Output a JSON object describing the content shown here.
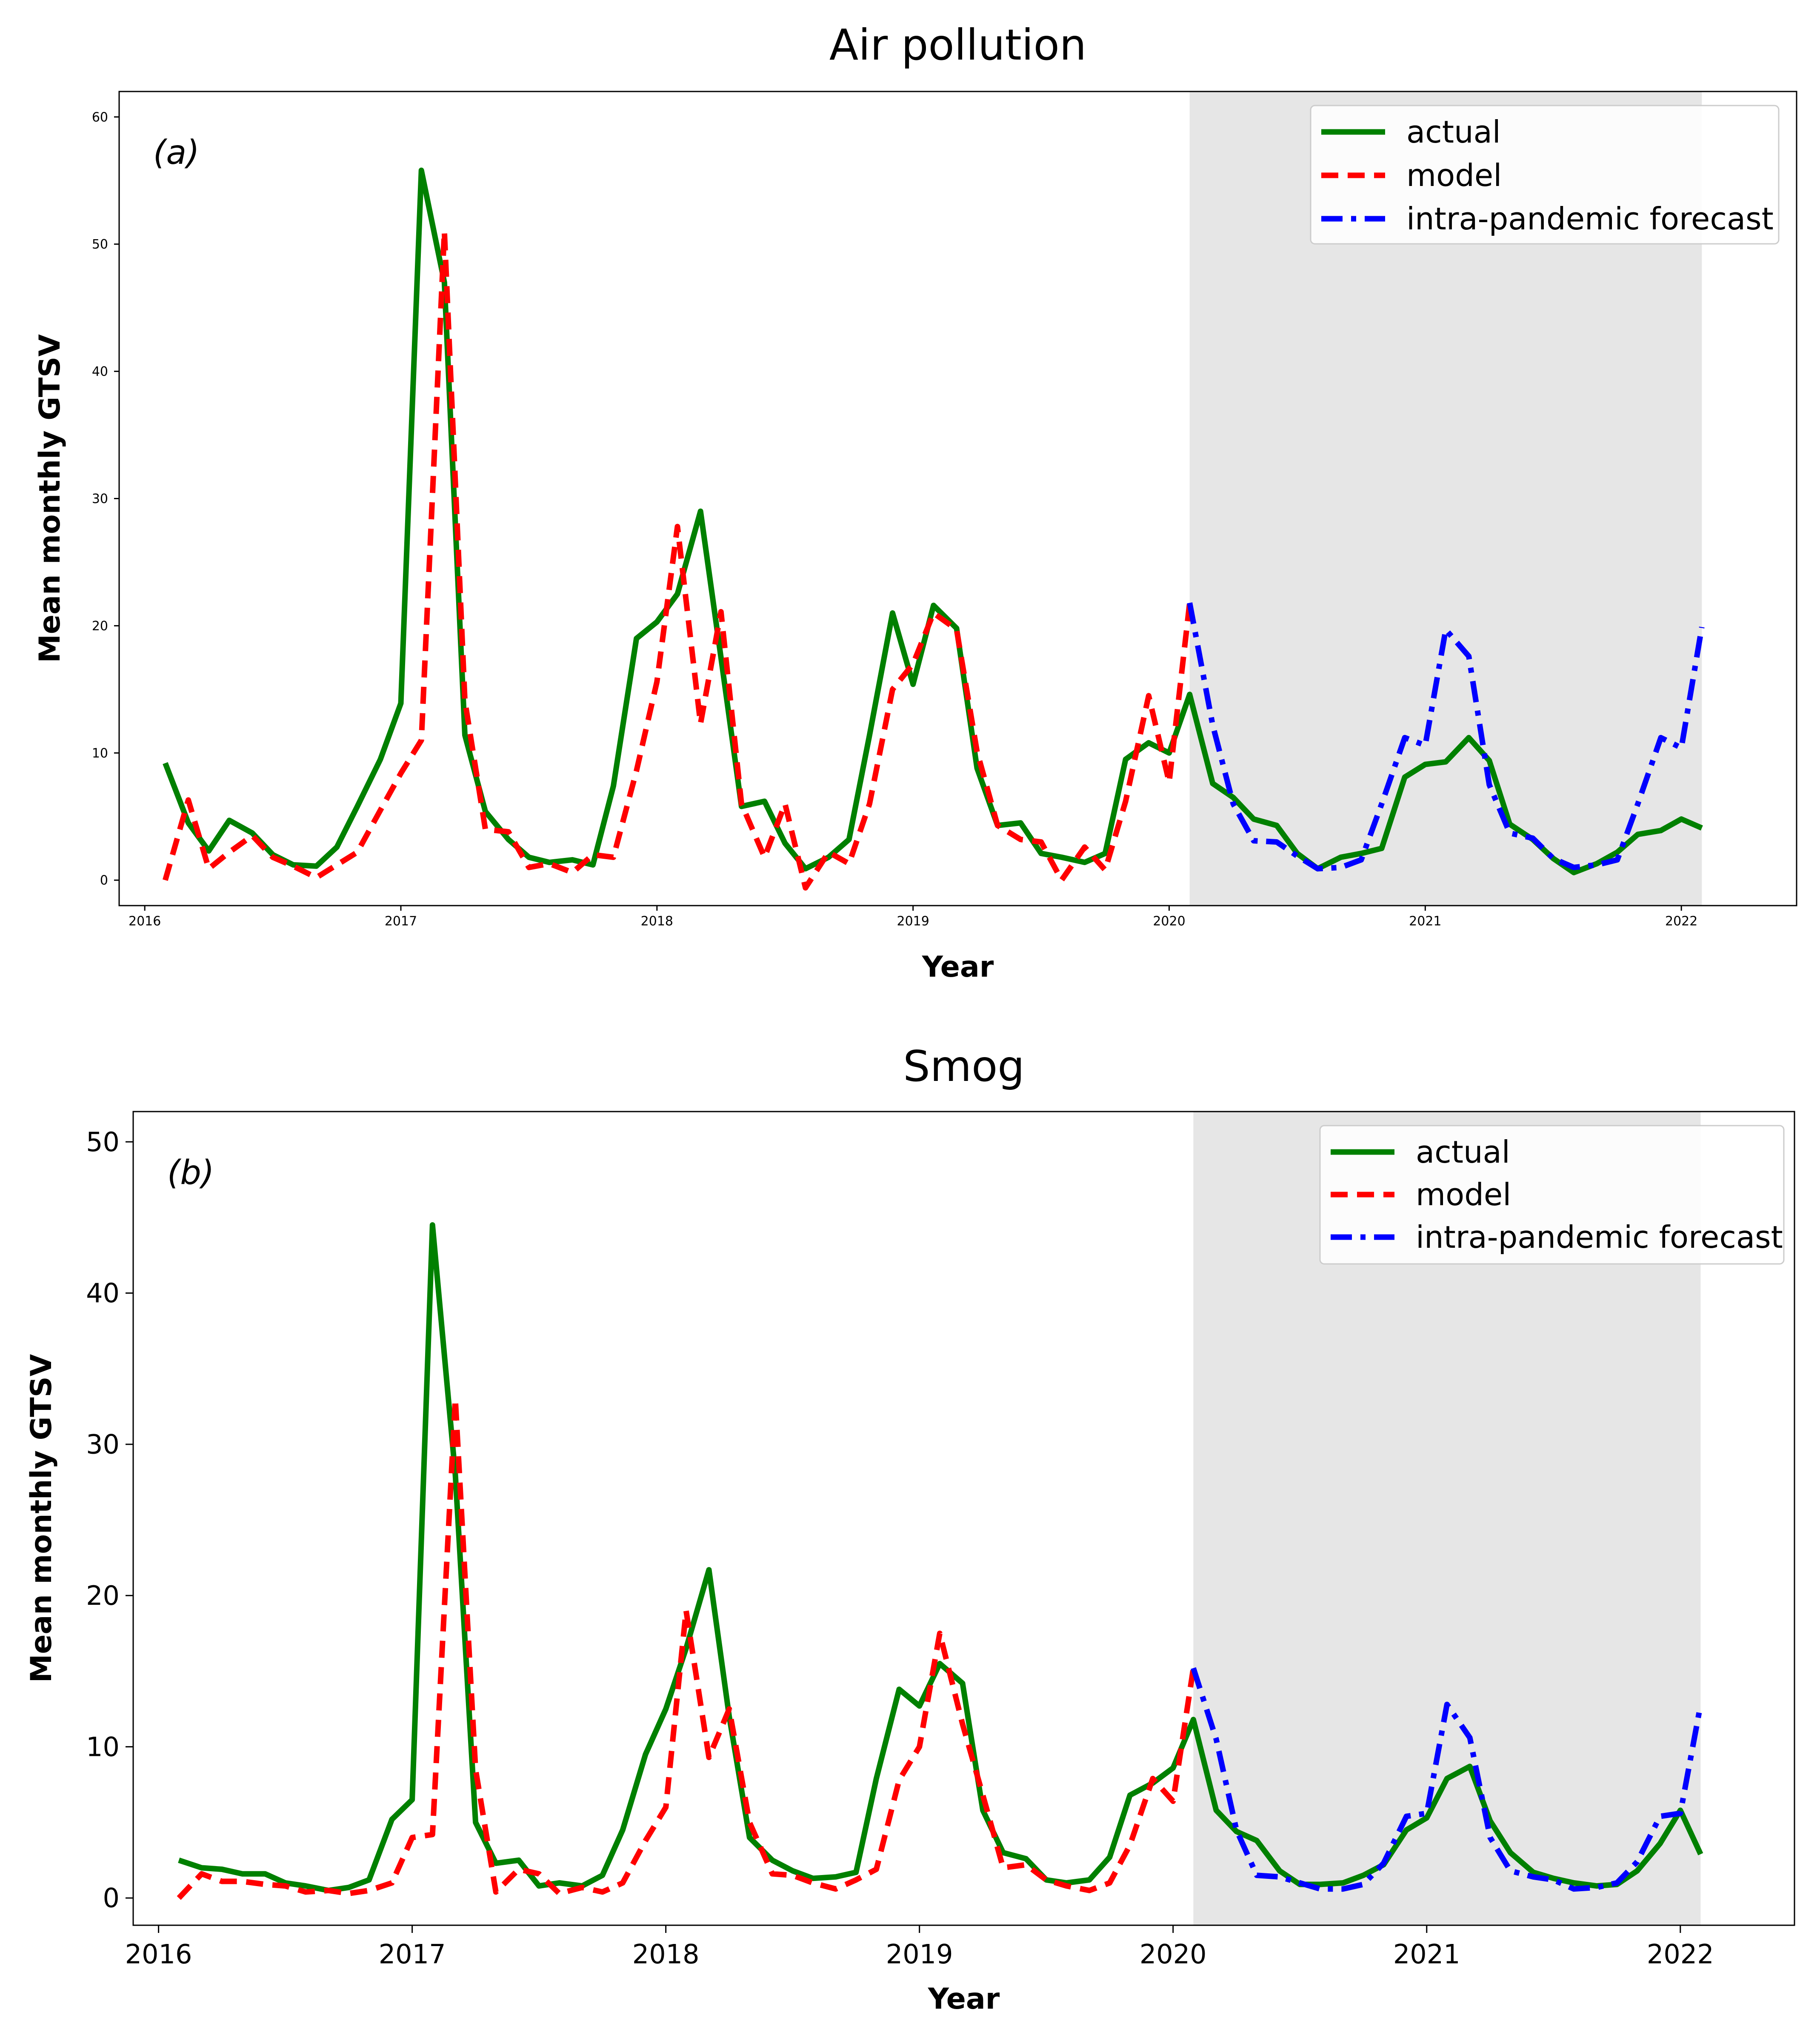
{
  "chart_data": [
    {
      "type": "line",
      "title": "Air pollution",
      "panel_label": "(a)",
      "xlabel": "Year",
      "ylabel": "Mean monthly GTSV",
      "xlim": [
        2015.9,
        2022.45
      ],
      "ylim": [
        -2,
        62
      ],
      "xticks": [
        2016,
        2017,
        2018,
        2019,
        2020,
        2021,
        2022
      ],
      "xtick_labels": [
        "2016",
        "2017",
        "2018",
        "2019",
        "2020",
        "2021",
        "2022"
      ],
      "yticks": [
        0,
        10,
        20,
        30,
        40,
        50,
        60
      ],
      "ytick_labels": [
        "0",
        "10",
        "20",
        "30",
        "40",
        "50",
        "60"
      ],
      "shaded_region": [
        2020.08,
        2022.08
      ],
      "legend_position": "top-right",
      "series": [
        {
          "name": "actual",
          "color": "#008000",
          "style": "solid",
          "x": [
            2016.08,
            2016.17,
            2016.25,
            2016.33,
            2016.42,
            2016.5,
            2016.58,
            2016.67,
            2016.75,
            2016.83,
            2016.92,
            2017.0,
            2017.08,
            2017.17,
            2017.25,
            2017.33,
            2017.42,
            2017.5,
            2017.58,
            2017.67,
            2017.75,
            2017.83,
            2017.92,
            2018.0,
            2018.08,
            2018.17,
            2018.25,
            2018.33,
            2018.42,
            2018.5,
            2018.58,
            2018.67,
            2018.75,
            2018.83,
            2018.92,
            2019.0,
            2019.08,
            2019.17,
            2019.25,
            2019.33,
            2019.42,
            2019.5,
            2019.58,
            2019.67,
            2019.75,
            2019.83,
            2019.92,
            2020.0,
            2020.08,
            2020.17,
            2020.25,
            2020.33,
            2020.42,
            2020.5,
            2020.58,
            2020.67,
            2020.75,
            2020.83,
            2020.92,
            2021.0,
            2021.08,
            2021.17,
            2021.25,
            2021.33,
            2021.42,
            2021.5,
            2021.58,
            2021.67,
            2021.75,
            2021.83,
            2021.92,
            2022.0,
            2022.08
          ],
          "values": [
            9.2,
            4.5,
            2.3,
            4.7,
            3.7,
            2.0,
            1.2,
            1.1,
            2.6,
            5.8,
            9.5,
            13.9,
            55.8,
            47.0,
            11.4,
            5.4,
            3.2,
            1.8,
            1.4,
            1.6,
            1.2,
            7.4,
            19.0,
            20.3,
            22.5,
            29.0,
            17.5,
            5.8,
            6.2,
            2.9,
            0.9,
            1.8,
            3.2,
            11.4,
            21.0,
            15.4,
            21.6,
            19.8,
            8.8,
            4.3,
            4.5,
            2.1,
            1.8,
            1.4,
            2.1,
            9.5,
            10.8,
            10.0,
            14.6,
            7.6,
            6.5,
            4.8,
            4.3,
            2.1,
            0.9,
            1.8,
            2.1,
            2.5,
            8.1,
            9.1,
            9.3,
            11.2,
            9.4,
            4.4,
            3.2,
            1.7,
            0.6,
            1.3,
            2.2,
            3.6,
            3.9,
            4.8,
            4.1
          ]
        },
        {
          "name": "model",
          "color": "#ff0000",
          "style": "dashed",
          "x": [
            2016.08,
            2016.17,
            2016.25,
            2016.33,
            2016.42,
            2016.5,
            2016.58,
            2016.67,
            2016.75,
            2016.83,
            2016.92,
            2017.0,
            2017.08,
            2017.17,
            2017.25,
            2017.33,
            2017.42,
            2017.5,
            2017.58,
            2017.67,
            2017.75,
            2017.83,
            2017.92,
            2018.0,
            2018.08,
            2018.17,
            2018.25,
            2018.33,
            2018.42,
            2018.5,
            2018.58,
            2018.67,
            2018.75,
            2018.83,
            2018.92,
            2019.0,
            2019.08,
            2019.17,
            2019.25,
            2019.33,
            2019.42,
            2019.5,
            2019.58,
            2019.67,
            2019.75,
            2019.83,
            2019.92,
            2020.0,
            2020.08
          ],
          "values": [
            0.0,
            6.3,
            0.9,
            2.2,
            3.5,
            1.8,
            1.1,
            0.2,
            1.2,
            2.2,
            5.5,
            8.4,
            11.0,
            51.0,
            14.1,
            4.0,
            3.8,
            1.0,
            1.3,
            0.6,
            2.0,
            1.8,
            8.6,
            15.6,
            27.8,
            12.3,
            21.1,
            6.0,
            1.8,
            6.0,
            -0.6,
            2.2,
            1.3,
            6.0,
            15.0,
            17.0,
            21.0,
            19.7,
            10.1,
            4.3,
            3.2,
            3.0,
            0.0,
            2.6,
            0.8,
            6.2,
            14.5,
            7.7,
            21.8
          ]
        },
        {
          "name": "intra-pandemic forecast",
          "color": "#0000ff",
          "style": "dashdot",
          "x": [
            2020.08,
            2020.17,
            2020.25,
            2020.33,
            2020.42,
            2020.5,
            2020.58,
            2020.67,
            2020.75,
            2020.83,
            2020.92,
            2021.0,
            2021.08,
            2021.17,
            2021.25,
            2021.33,
            2021.42,
            2021.5,
            2021.58,
            2021.67,
            2021.75,
            2021.83,
            2021.92,
            2022.0,
            2022.08
          ],
          "values": [
            21.8,
            12.2,
            6.0,
            3.1,
            3.0,
            1.9,
            0.9,
            1.0,
            1.6,
            6.0,
            11.2,
            10.6,
            19.7,
            17.6,
            7.5,
            3.7,
            3.3,
            1.7,
            1.0,
            1.2,
            1.6,
            6.0,
            11.2,
            10.4,
            19.9
          ]
        }
      ]
    },
    {
      "type": "line",
      "title": "Smog",
      "panel_label": "(b)",
      "xlabel": "Year",
      "ylabel": "Mean monthly GTSV",
      "xlim": [
        2015.9,
        2022.45
      ],
      "ylim": [
        -1.8,
        52
      ],
      "xticks": [
        2016,
        2017,
        2018,
        2019,
        2020,
        2021,
        2022
      ],
      "xtick_labels": [
        "2016",
        "2017",
        "2018",
        "2019",
        "2020",
        "2021",
        "2022"
      ],
      "yticks": [
        0,
        10,
        20,
        30,
        40,
        50
      ],
      "ytick_labels": [
        "0",
        "10",
        "20",
        "30",
        "40",
        "50"
      ],
      "shaded_region": [
        2020.08,
        2022.08
      ],
      "legend_position": "top-right",
      "series": [
        {
          "name": "actual",
          "color": "#008000",
          "style": "solid",
          "x": [
            2016.08,
            2016.17,
            2016.25,
            2016.33,
            2016.42,
            2016.5,
            2016.58,
            2016.67,
            2016.75,
            2016.83,
            2016.92,
            2017.0,
            2017.08,
            2017.17,
            2017.25,
            2017.33,
            2017.42,
            2017.5,
            2017.58,
            2017.67,
            2017.75,
            2017.83,
            2017.92,
            2018.0,
            2018.08,
            2018.17,
            2018.25,
            2018.33,
            2018.42,
            2018.5,
            2018.58,
            2018.67,
            2018.75,
            2018.83,
            2018.92,
            2019.0,
            2019.08,
            2019.17,
            2019.25,
            2019.33,
            2019.42,
            2019.5,
            2019.58,
            2019.67,
            2019.75,
            2019.83,
            2019.92,
            2020.0,
            2020.08,
            2020.17,
            2020.25,
            2020.33,
            2020.42,
            2020.5,
            2020.58,
            2020.67,
            2020.75,
            2020.83,
            2020.92,
            2021.0,
            2021.08,
            2021.17,
            2021.25,
            2021.33,
            2021.42,
            2021.5,
            2021.58,
            2021.67,
            2021.75,
            2021.83,
            2021.92,
            2022.0,
            2022.08
          ],
          "values": [
            2.5,
            2.0,
            1.9,
            1.6,
            1.6,
            1.0,
            0.8,
            0.5,
            0.7,
            1.2,
            5.2,
            6.5,
            44.5,
            28.0,
            5.0,
            2.3,
            2.5,
            0.8,
            1.0,
            0.8,
            1.5,
            4.5,
            9.5,
            12.5,
            16.5,
            21.7,
            12.0,
            4.0,
            2.5,
            1.8,
            1.3,
            1.4,
            1.7,
            7.9,
            13.8,
            12.7,
            15.5,
            14.2,
            5.8,
            3.0,
            2.6,
            1.2,
            1.0,
            1.2,
            2.7,
            6.8,
            7.6,
            8.6,
            11.8,
            5.8,
            4.4,
            3.8,
            1.8,
            0.9,
            0.9,
            1.0,
            1.5,
            2.2,
            4.5,
            5.3,
            7.9,
            8.7,
            5.1,
            3.0,
            1.7,
            1.3,
            1.0,
            0.8,
            0.9,
            1.8,
            3.6,
            5.8,
            2.9
          ]
        },
        {
          "name": "model",
          "color": "#ff0000",
          "style": "dashed",
          "x": [
            2016.08,
            2016.17,
            2016.25,
            2016.33,
            2016.42,
            2016.5,
            2016.58,
            2016.67,
            2016.75,
            2016.83,
            2016.92,
            2017.0,
            2017.08,
            2017.17,
            2017.25,
            2017.33,
            2017.42,
            2017.5,
            2017.58,
            2017.67,
            2017.75,
            2017.83,
            2017.92,
            2018.0,
            2018.08,
            2018.17,
            2018.25,
            2018.33,
            2018.42,
            2018.5,
            2018.58,
            2018.67,
            2018.75,
            2018.83,
            2018.92,
            2019.0,
            2019.08,
            2019.17,
            2019.25,
            2019.33,
            2019.42,
            2019.5,
            2019.58,
            2019.67,
            2019.75,
            2019.83,
            2019.92,
            2020.0,
            2020.08
          ],
          "values": [
            0.0,
            1.6,
            1.1,
            1.1,
            0.9,
            0.8,
            0.4,
            0.5,
            0.3,
            0.5,
            1.0,
            4.0,
            4.2,
            33.0,
            8.5,
            0.4,
            1.9,
            1.6,
            0.3,
            0.7,
            0.4,
            1.0,
            3.8,
            6.0,
            19.0,
            9.3,
            12.5,
            5.0,
            1.6,
            1.5,
            1.0,
            0.6,
            1.2,
            1.9,
            7.8,
            10.0,
            17.5,
            11.5,
            6.8,
            2.0,
            2.2,
            1.2,
            0.8,
            0.5,
            1.0,
            3.5,
            7.9,
            6.4,
            15.2
          ]
        },
        {
          "name": "intra-pandemic forecast",
          "color": "#0000ff",
          "style": "dashdot",
          "x": [
            2020.08,
            2020.17,
            2020.25,
            2020.33,
            2020.42,
            2020.5,
            2020.58,
            2020.67,
            2020.75,
            2020.83,
            2020.92,
            2021.0,
            2021.08,
            2021.17,
            2021.25,
            2021.33,
            2021.42,
            2021.5,
            2021.58,
            2021.67,
            2021.75,
            2021.83,
            2021.92,
            2022.0,
            2022.08
          ],
          "values": [
            15.2,
            10.5,
            4.5,
            1.5,
            1.4,
            1.0,
            0.6,
            0.6,
            0.9,
            2.3,
            5.4,
            5.6,
            12.8,
            10.6,
            4.0,
            1.8,
            1.4,
            1.2,
            0.6,
            0.7,
            1.0,
            2.4,
            5.4,
            5.6,
            12.8
          ]
        }
      ]
    }
  ]
}
